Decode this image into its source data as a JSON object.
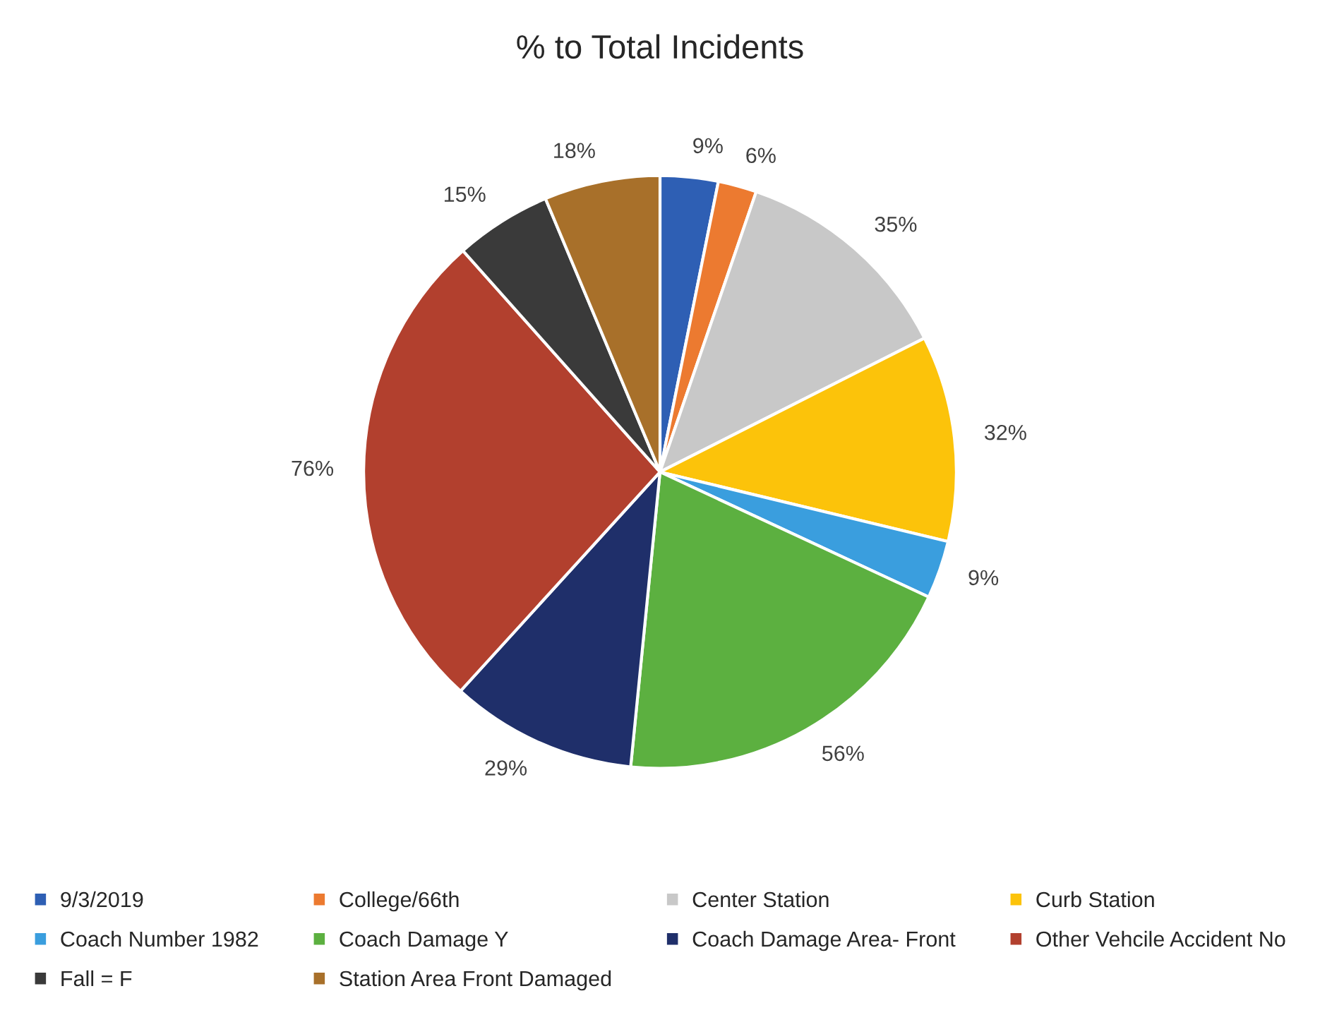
{
  "chart_data": {
    "type": "pie",
    "title": "% to Total Incidents",
    "categories": [
      "9/3/2019",
      "College/66th",
      "Center Station",
      "Curb Station",
      "Coach Number 1982",
      "Coach Damage Y",
      "Coach Damage Area- Front",
      "Other Vehcile Accident No",
      "Fall = F",
      "Station Area Front Damaged"
    ],
    "values": [
      9,
      6,
      35,
      32,
      9,
      56,
      29,
      76,
      15,
      18
    ],
    "value_labels": [
      "9%",
      "6%",
      "35%",
      "32%",
      "9%",
      "56%",
      "29%",
      "76%",
      "15%",
      "18%"
    ],
    "colors": [
      "#2e5fb4",
      "#ec7a30",
      "#c8c8c8",
      "#fcc30a",
      "#3a9ede",
      "#5cb040",
      "#1f2f6a",
      "#b2402e",
      "#3a3a3a",
      "#a8702a"
    ],
    "legend": "bottom"
  }
}
